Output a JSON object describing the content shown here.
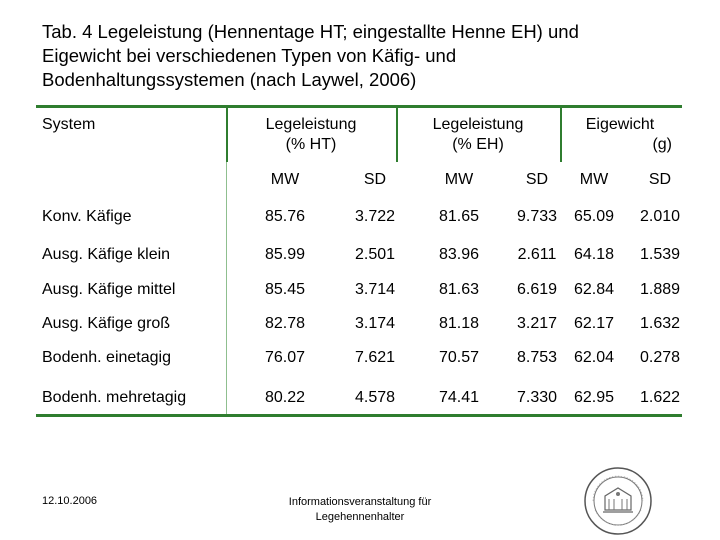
{
  "title": {
    "line1": "Tab. 4 Legeleistung (Hennentage HT; eingestallte Henne EH) und",
    "line2": "Eigewicht bei verschiedenen Typen von Käfig- und",
    "line3": "Bodenhaltungssystemen (nach Laywel, 2006)"
  },
  "table": {
    "col_system": "System",
    "group1": {
      "line1": "Legeleistung",
      "line2": "(% HT)"
    },
    "group2": {
      "line1": "Legeleistung",
      "line2": "(% EH)"
    },
    "group3": {
      "line1": "Eigewicht",
      "line2": "(g)"
    },
    "sub": [
      "MW",
      "SD",
      "MW",
      "SD",
      "MW",
      "SD"
    ],
    "rows": [
      {
        "label": "Konv. Käfige",
        "v": [
          "85.76",
          "3.722",
          "81.65",
          "9.733",
          "65.09",
          "2.010"
        ]
      },
      {
        "label": "Ausg. Käfige klein",
        "v": [
          "85.99",
          "2.501",
          "83.96",
          "2.611",
          "64.18",
          "1.539"
        ]
      },
      {
        "label": "Ausg. Käfige mittel",
        "v": [
          "85.45",
          "3.714",
          "81.63",
          "6.619",
          "62.84",
          "1.889"
        ]
      },
      {
        "label": "Ausg. Käfige groß",
        "v": [
          "82.78",
          "3.174",
          "81.18",
          "3.217",
          "62.17",
          "1.632"
        ]
      },
      {
        "label": "Bodenh. einetagig",
        "v": [
          "76.07",
          "7.621",
          "70.57",
          "8.753",
          "62.04",
          "0.278"
        ]
      },
      {
        "label": "Bodenh. mehretagig",
        "v": [
          "80.22",
          "4.578",
          "74.41",
          "7.330",
          "62.95",
          "1.622"
        ]
      }
    ]
  },
  "footer": {
    "date": "12.10.2006",
    "center_line1": "Informationsveranstaltung für",
    "center_line2": "Legehennenhalter",
    "seal_icon": "university-seal-icon"
  },
  "colors": {
    "rule": "#2f7d2f"
  }
}
